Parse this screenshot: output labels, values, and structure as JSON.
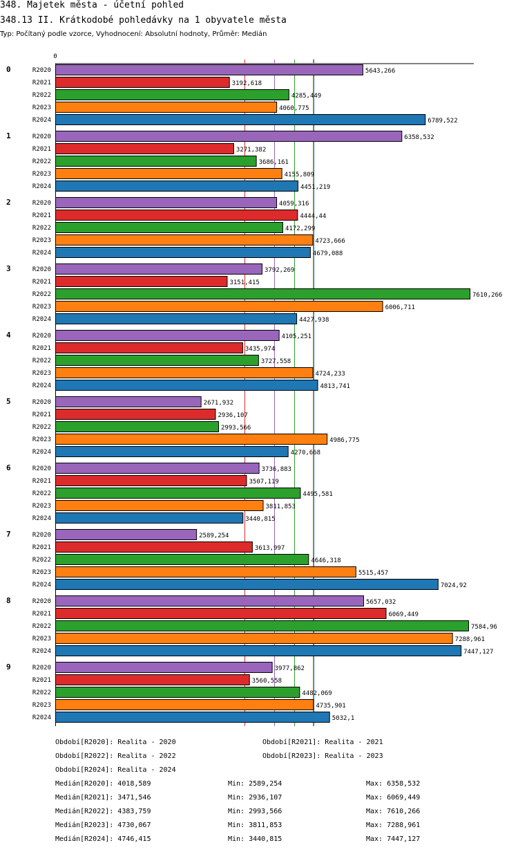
{
  "header": {
    "title": "348. Majetek města - účetní pohled",
    "subtitle": "348.13 II. Krátkodobé pohledávky na 1 obyvatele města",
    "type_line": "Typ: Počítaný podle vzorce, Vyhodnocení: Absolutní hodnoty, Průměr: Medián"
  },
  "colors": {
    "R2020": "#9966bb",
    "R2021": "#dd2b2b",
    "R2022": "#2ca02c",
    "R2023": "#ff8010",
    "R2024": "#1f77b4"
  },
  "chart_data": {
    "type": "bar",
    "orientation": "horizontal",
    "axis_zero_label": "0",
    "xlim": [
      0,
      7610.266
    ],
    "groups": [
      "0",
      "1",
      "2",
      "3",
      "4",
      "5",
      "6",
      "7",
      "8",
      "9"
    ],
    "series": [
      {
        "name": "R2020",
        "values": [
          5643.266,
          6358.532,
          4059.316,
          3792.269,
          4105.251,
          2671.932,
          3736.883,
          2589.254,
          5657.032,
          3977.862
        ],
        "labels": [
          "5643,266",
          "6358,532",
          "4059,316",
          "3792,269",
          "4105,251",
          "2671,932",
          "3736,883",
          "2589,254",
          "5657,032",
          "3977,862"
        ]
      },
      {
        "name": "R2021",
        "values": [
          3192.618,
          3271.382,
          4444.44,
          3151.415,
          3435.974,
          2936.107,
          3507.119,
          3613.997,
          6069.449,
          3560.558
        ],
        "labels": [
          "3192,618",
          "3271,382",
          "4444,44",
          "3151,415",
          "3435,974",
          "2936,107",
          "3507,119",
          "3613,997",
          "6069,449",
          "3560,558"
        ]
      },
      {
        "name": "R2022",
        "values": [
          4285.449,
          3686.161,
          4172.299,
          7610.266,
          3727.558,
          2993.566,
          4495.581,
          4646.318,
          7584.96,
          4482.069
        ],
        "labels": [
          "4285,449",
          "3686,161",
          "4172,299",
          "7610,266",
          "3727,558",
          "2993,566",
          "4495,581",
          "4646,318",
          "7584,96",
          "4482,069"
        ]
      },
      {
        "name": "R2023",
        "values": [
          4060.775,
          4155.809,
          4723.666,
          6006.711,
          4724.233,
          4986.775,
          3811.853,
          5515.457,
          7288.961,
          4735.901
        ],
        "labels": [
          "4060,775",
          "4155,809",
          "4723,666",
          "6006,711",
          "4724,233",
          "4986,775",
          "3811,853",
          "5515,457",
          "7288,961",
          "4735,901"
        ]
      },
      {
        "name": "R2024",
        "values": [
          6789.522,
          4451.219,
          4679.088,
          4427.938,
          4813.741,
          4270.668,
          3440.815,
          7024.92,
          7447.127,
          5032.1
        ],
        "labels": [
          "6789,522",
          "4451,219",
          "4679,088",
          "4427,938",
          "4813,741",
          "4270,668",
          "3440,815",
          "7024,92",
          "7447,127",
          "5032,1"
        ]
      }
    ],
    "medians": [
      {
        "series": "R2020",
        "value": 4018.589
      },
      {
        "series": "R2021",
        "value": 3471.546
      },
      {
        "series": "R2022",
        "value": 4383.759
      },
      {
        "series": "R2023",
        "value": 4730.067
      },
      {
        "series": "R2024",
        "value": 4746.415
      }
    ]
  },
  "legend": {
    "periods": [
      "Období[R2020]: Realita - 2020",
      "Období[R2021]: Realita - 2021",
      "Období[R2022]: Realita - 2022",
      "Období[R2023]: Realita - 2023",
      "Období[R2024]: Realita - 2024"
    ],
    "stats": [
      {
        "median": "Medián[R2020]: 4018,589",
        "min": "Min: 2589,254",
        "max": "Max: 6358,532"
      },
      {
        "median": "Medián[R2021]: 3471,546",
        "min": "Min: 2936,107",
        "max": "Max: 6069,449"
      },
      {
        "median": "Medián[R2022]: 4383,759",
        "min": "Min: 2993,566",
        "max": "Max: 7610,266"
      },
      {
        "median": "Medián[R2023]: 4730,067",
        "min": "Min: 3811,853",
        "max": "Max: 7288,961"
      },
      {
        "median": "Medián[R2024]: 4746,415",
        "min": "Min: 3440,815",
        "max": "Max: 7447,127"
      }
    ]
  }
}
